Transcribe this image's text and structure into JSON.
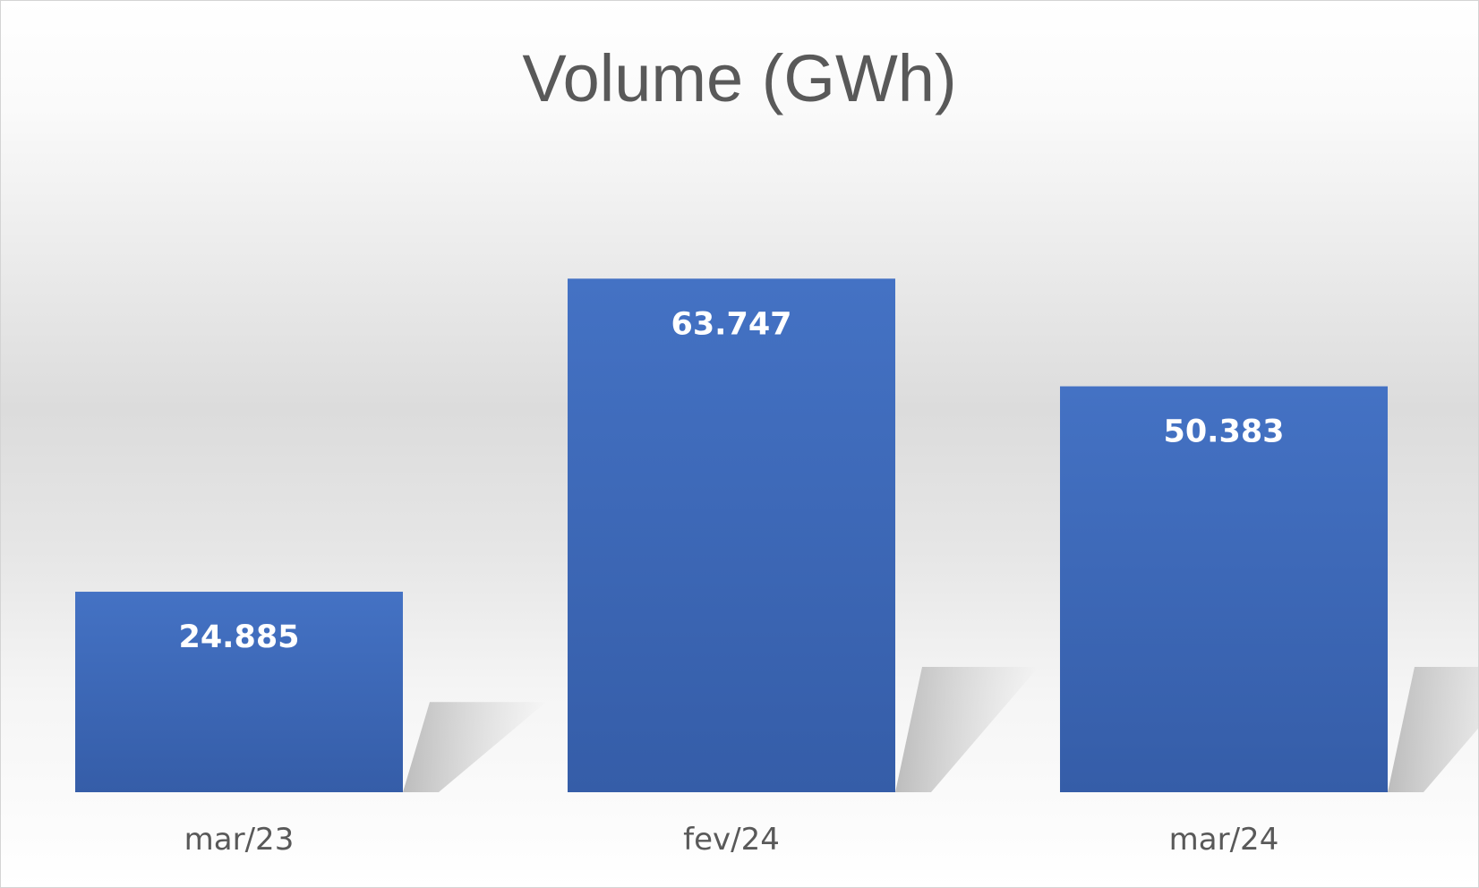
{
  "chart_data": {
    "type": "bar",
    "title": "Volume (GWh)",
    "xlabel": "",
    "ylabel": "",
    "categories": [
      "mar/23",
      "fev/24",
      "mar/24"
    ],
    "values": [
      24.885,
      63.747,
      50.383
    ],
    "value_labels": [
      "24.885",
      "63.747",
      "50.383"
    ],
    "ylim": [
      0,
      70
    ],
    "grid": false,
    "legend": "none",
    "bar_color": "#4472C4",
    "bar_color_dark": "#355DA8",
    "label_color": "#FFFFFF",
    "text_color": "#595959"
  }
}
